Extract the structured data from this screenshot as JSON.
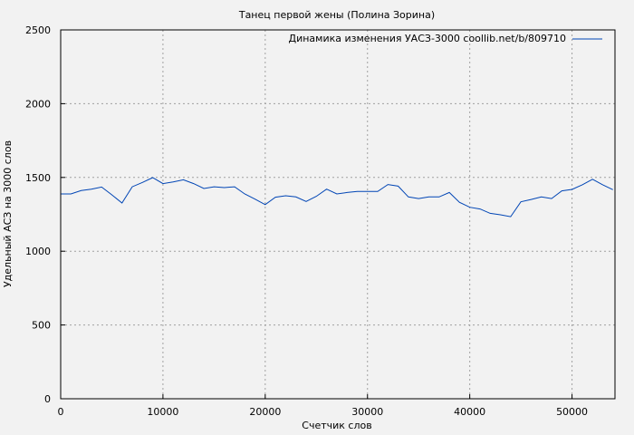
{
  "chart_data": {
    "type": "line",
    "title": "Танец первой жены (Полина Зорина)",
    "xlabel": "Счетчик слов",
    "ylabel": "Удельный АСЗ на 3000 слов",
    "xlim": [
      0,
      54200
    ],
    "ylim": [
      0,
      2500
    ],
    "xticks": [
      0,
      10000,
      20000,
      30000,
      40000,
      50000
    ],
    "yticks": [
      0,
      500,
      1000,
      1500,
      2000,
      2500
    ],
    "grid": true,
    "legend_position": "top-right",
    "series": [
      {
        "name": "Динамика изменения УАСЗ-3000 coollib.net/b/809710",
        "color": "#0045b5",
        "x": [
          0,
          1000,
          2000,
          3000,
          4000,
          5000,
          6000,
          7000,
          8000,
          9000,
          10000,
          11000,
          12000,
          13000,
          14000,
          15000,
          16000,
          17000,
          18000,
          19000,
          20000,
          21000,
          22000,
          23000,
          24000,
          25000,
          26000,
          27000,
          28000,
          29000,
          30000,
          31000,
          32000,
          33000,
          34000,
          35000,
          36000,
          37000,
          38000,
          39000,
          40000,
          41000,
          42000,
          43000,
          44000,
          45000,
          46000,
          47000,
          48000,
          49000,
          50000,
          51000,
          52000,
          53000,
          54000
        ],
        "y": [
          1388,
          1388,
          1411,
          1421,
          1435,
          1382,
          1327,
          1437,
          1466,
          1499,
          1458,
          1470,
          1484,
          1458,
          1425,
          1437,
          1431,
          1437,
          1388,
          1353,
          1316,
          1366,
          1376,
          1368,
          1337,
          1372,
          1421,
          1388,
          1398,
          1405,
          1405,
          1405,
          1452,
          1441,
          1368,
          1357,
          1368,
          1368,
          1398,
          1331,
          1298,
          1286,
          1257,
          1247,
          1234,
          1335,
          1351,
          1368,
          1357,
          1409,
          1419,
          1450,
          1488,
          1450,
          1417
        ]
      }
    ]
  }
}
